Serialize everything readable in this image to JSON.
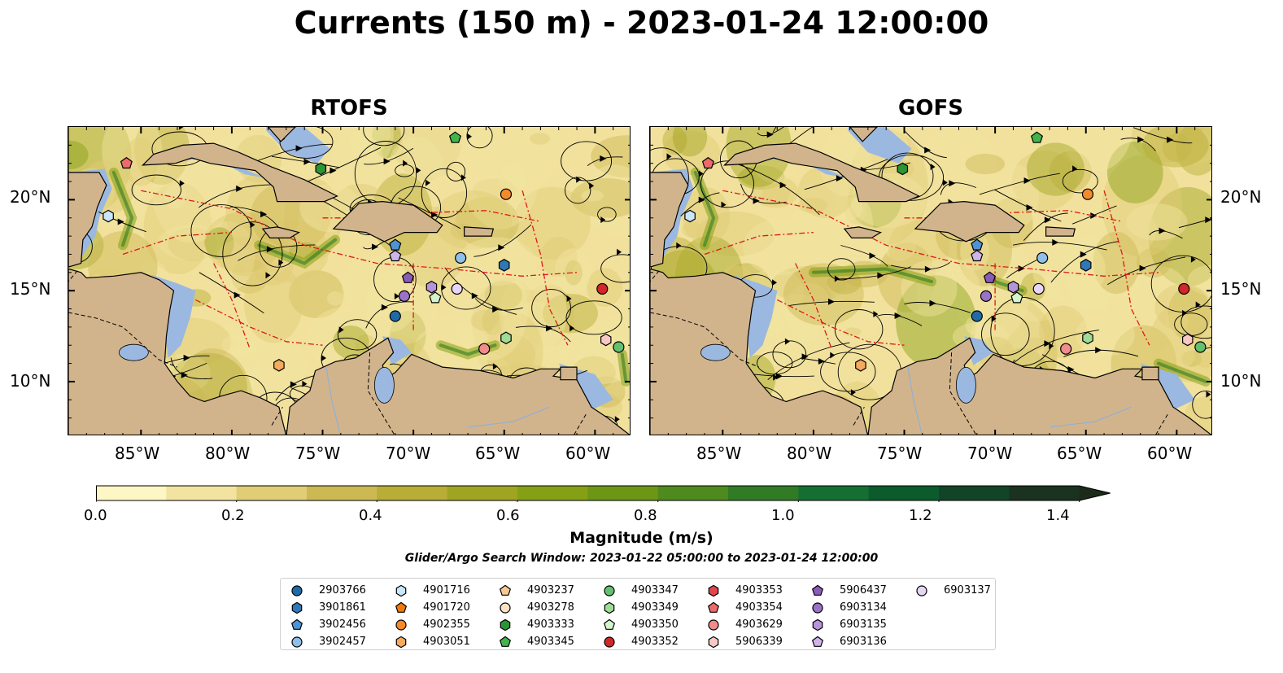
{
  "title": "Currents (150 m) - 2023-01-24 12:00:00",
  "panels": [
    {
      "title": "RTOFS"
    },
    {
      "title": "GOFS"
    }
  ],
  "lat_ticks": [
    "20°N",
    "15°N",
    "10°N"
  ],
  "lon_ticks": [
    "85°W",
    "80°W",
    "75°W",
    "70°W",
    "65°W",
    "60°W"
  ],
  "colorbar": {
    "label": "Magnitude (m/s)",
    "ticks": [
      "0.0",
      "0.2",
      "0.4",
      "0.6",
      "0.8",
      "1.0",
      "1.2",
      "1.4"
    ],
    "range": [
      0.0,
      1.5
    ],
    "extend": "max",
    "colors": [
      "#fdf7c6",
      "#f2e4a0",
      "#e0cd76",
      "#cdb954",
      "#b8ad36",
      "#9fa422",
      "#86a015",
      "#6d9616",
      "#4f8a1e",
      "#317b25",
      "#156f32",
      "#0c5b2d",
      "#124427",
      "#1a321f",
      "#1c2a1a"
    ]
  },
  "search_window": "Glider/Argo Search Window: 2023-01-22 05:00:00 to 2023-01-24 12:00:00",
  "legend": [
    {
      "id": "2903766",
      "marker": "circle",
      "color": "#1f6aa8"
    },
    {
      "id": "3901861",
      "marker": "hexagon",
      "color": "#2f78b8"
    },
    {
      "id": "3902456",
      "marker": "pentagon",
      "color": "#4f93d4"
    },
    {
      "id": "3902457",
      "marker": "circle",
      "color": "#8ec0ea"
    },
    {
      "id": "4901716",
      "marker": "hexagon",
      "color": "#c9e6fb"
    },
    {
      "id": "4901720",
      "marker": "pentagon",
      "color": "#f07a0a"
    },
    {
      "id": "4902355",
      "marker": "circle",
      "color": "#f58a2a"
    },
    {
      "id": "4903051",
      "marker": "hexagon",
      "color": "#f6aa5c"
    },
    {
      "id": "4903237",
      "marker": "pentagon",
      "color": "#f8c892"
    },
    {
      "id": "4903278",
      "marker": "circle",
      "color": "#fde2c6"
    },
    {
      "id": "4903333",
      "marker": "hexagon",
      "color": "#2b9434"
    },
    {
      "id": "4903345",
      "marker": "pentagon",
      "color": "#42b44c"
    },
    {
      "id": "4903347",
      "marker": "circle",
      "color": "#63c070"
    },
    {
      "id": "4903349",
      "marker": "hexagon",
      "color": "#9edc98"
    },
    {
      "id": "4903350",
      "marker": "pentagon",
      "color": "#d3f5cc"
    },
    {
      "id": "4903352",
      "marker": "circle",
      "color": "#d2262a"
    },
    {
      "id": "4903353",
      "marker": "hexagon",
      "color": "#e2464a"
    },
    {
      "id": "4903354",
      "marker": "pentagon",
      "color": "#ec6a6c"
    },
    {
      "id": "4903629",
      "marker": "circle",
      "color": "#f08c8c"
    },
    {
      "id": "5906339",
      "marker": "hexagon",
      "color": "#f8c8c4"
    },
    {
      "id": "5906437",
      "marker": "pentagon",
      "color": "#8a5cb8"
    },
    {
      "id": "6903134",
      "marker": "circle",
      "color": "#9c72c8"
    },
    {
      "id": "6903135",
      "marker": "hexagon",
      "color": "#b694da"
    },
    {
      "id": "6903136",
      "marker": "pentagon",
      "color": "#cfb4ea"
    },
    {
      "id": "6903137",
      "marker": "circle",
      "color": "#e6d6f6"
    }
  ],
  "extent": {
    "lon": [
      -89,
      -58
    ],
    "lat": [
      7,
      24
    ]
  },
  "floats_rtofs": [
    {
      "id": "4903354",
      "lon": -85.8,
      "lat": 22.0
    },
    {
      "id": "4903345",
      "lon": -67.7,
      "lat": 23.4
    },
    {
      "id": "4903333",
      "lon": -75.1,
      "lat": 21.7
    },
    {
      "id": "4901716",
      "lon": -86.8,
      "lat": 19.1
    },
    {
      "id": "4902355",
      "lon": -64.9,
      "lat": 20.3
    },
    {
      "id": "3902456",
      "lon": -71.0,
      "lat": 17.5
    },
    {
      "id": "6903136",
      "lon": -71.0,
      "lat": 16.9
    },
    {
      "id": "3902457",
      "lon": -67.4,
      "lat": 16.8
    },
    {
      "id": "3901861",
      "lon": -65.0,
      "lat": 16.4
    },
    {
      "id": "5906437",
      "lon": -70.3,
      "lat": 15.7
    },
    {
      "id": "6903134",
      "lon": -70.5,
      "lat": 14.7
    },
    {
      "id": "6903135",
      "lon": -69.0,
      "lat": 15.2
    },
    {
      "id": "6903137",
      "lon": -67.6,
      "lat": 15.1
    },
    {
      "id": "4903350",
      "lon": -68.8,
      "lat": 14.6
    },
    {
      "id": "4903352",
      "lon": -59.6,
      "lat": 15.1
    },
    {
      "id": "2903766",
      "lon": -71.0,
      "lat": 13.6
    },
    {
      "id": "4903349",
      "lon": -64.9,
      "lat": 12.4
    },
    {
      "id": "5906339",
      "lon": -59.4,
      "lat": 12.3
    },
    {
      "id": "4903347",
      "lon": -58.7,
      "lat": 11.9
    },
    {
      "id": "4903629",
      "lon": -66.1,
      "lat": 11.8
    },
    {
      "id": "4903051",
      "lon": -77.4,
      "lat": 10.9
    }
  ],
  "floats_gofs": [
    {
      "id": "4903354",
      "lon": -85.8,
      "lat": 22.0
    },
    {
      "id": "4903345",
      "lon": -67.7,
      "lat": 23.4
    },
    {
      "id": "4903333",
      "lon": -75.1,
      "lat": 21.7
    },
    {
      "id": "4901716",
      "lon": -86.8,
      "lat": 19.1
    },
    {
      "id": "4902355",
      "lon": -64.9,
      "lat": 20.3
    },
    {
      "id": "3902456",
      "lon": -71.0,
      "lat": 17.5
    },
    {
      "id": "6903136",
      "lon": -71.0,
      "lat": 16.9
    },
    {
      "id": "3902457",
      "lon": -67.4,
      "lat": 16.8
    },
    {
      "id": "3901861",
      "lon": -65.0,
      "lat": 16.4
    },
    {
      "id": "5906437",
      "lon": -70.3,
      "lat": 15.7
    },
    {
      "id": "6903134",
      "lon": -70.5,
      "lat": 14.7
    },
    {
      "id": "6903135",
      "lon": -69.0,
      "lat": 15.2
    },
    {
      "id": "6903137",
      "lon": -67.6,
      "lat": 15.1
    },
    {
      "id": "4903350",
      "lon": -68.8,
      "lat": 14.6
    },
    {
      "id": "4903352",
      "lon": -59.6,
      "lat": 15.1
    },
    {
      "id": "2903766",
      "lon": -71.0,
      "lat": 13.6
    },
    {
      "id": "4903349",
      "lon": -64.9,
      "lat": 12.4
    },
    {
      "id": "5906339",
      "lon": -59.4,
      "lat": 12.3
    },
    {
      "id": "4903347",
      "lon": -58.7,
      "lat": 11.9
    },
    {
      "id": "4903629",
      "lon": -66.1,
      "lat": 11.8
    },
    {
      "id": "4903051",
      "lon": -77.4,
      "lat": 10.9
    }
  ]
}
